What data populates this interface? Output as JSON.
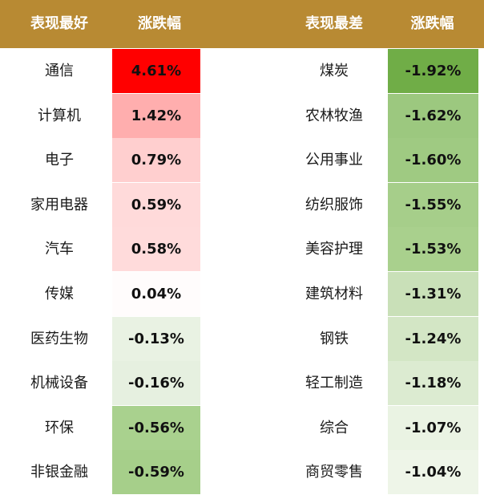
{
  "header": {
    "best_label": "表现最好",
    "best_change_label": "涨跌幅",
    "worst_label": "表现最差",
    "worst_change_label": "涨跌幅"
  },
  "chart_data": {
    "type": "table",
    "columns": [
      "表现最好",
      "涨跌幅",
      "表现最差",
      "涨跌幅"
    ],
    "best": [
      {
        "name": "通信",
        "change": "4.61%",
        "value": 4.61,
        "color": "#ff0000"
      },
      {
        "name": "计算机",
        "change": "1.42%",
        "value": 1.42,
        "color": "#ffaeae"
      },
      {
        "name": "电子",
        "change": "0.79%",
        "value": 0.79,
        "color": "#ffcfcf"
      },
      {
        "name": "家用电器",
        "change": "0.59%",
        "value": 0.59,
        "color": "#ffdada"
      },
      {
        "name": "汽车",
        "change": "0.58%",
        "value": 0.58,
        "color": "#ffdbdb"
      },
      {
        "name": "传媒",
        "change": "0.04%",
        "value": 0.04,
        "color": "#fffcfc"
      },
      {
        "name": "医药生物",
        "change": "-0.13%",
        "value": -0.13,
        "color": "#e9f2e3"
      },
      {
        "name": "机械设备",
        "change": "-0.16%",
        "value": -0.16,
        "color": "#e6f0e0"
      },
      {
        "name": "环保",
        "change": "-0.56%",
        "value": -0.56,
        "color": "#a9d18e"
      },
      {
        "name": "非银金融",
        "change": "-0.59%",
        "value": -0.59,
        "color": "#a6cf8a"
      }
    ],
    "worst": [
      {
        "name": "煤炭",
        "change": "-1.92%",
        "value": -1.92,
        "color": "#70ad47"
      },
      {
        "name": "农林牧渔",
        "change": "-1.62%",
        "value": -1.62,
        "color": "#9cc87f"
      },
      {
        "name": "公用事业",
        "change": "-1.60%",
        "value": -1.6,
        "color": "#9fca82"
      },
      {
        "name": "纺织服饰",
        "change": "-1.55%",
        "value": -1.55,
        "color": "#a6ce8a"
      },
      {
        "name": "美容护理",
        "change": "-1.53%",
        "value": -1.53,
        "color": "#a9d08d"
      },
      {
        "name": "建筑材料",
        "change": "-1.31%",
        "value": -1.31,
        "color": "#c9e0b8"
      },
      {
        "name": "钢铁",
        "change": "-1.24%",
        "value": -1.24,
        "color": "#d3e6c5"
      },
      {
        "name": "轻工制造",
        "change": "-1.18%",
        "value": -1.18,
        "color": "#dcebd1"
      },
      {
        "name": "综合",
        "change": "-1.07%",
        "value": -1.07,
        "color": "#eaf3e3"
      },
      {
        "name": "商贸零售",
        "change": "-1.04%",
        "value": -1.04,
        "color": "#eef5e8"
      }
    ]
  }
}
